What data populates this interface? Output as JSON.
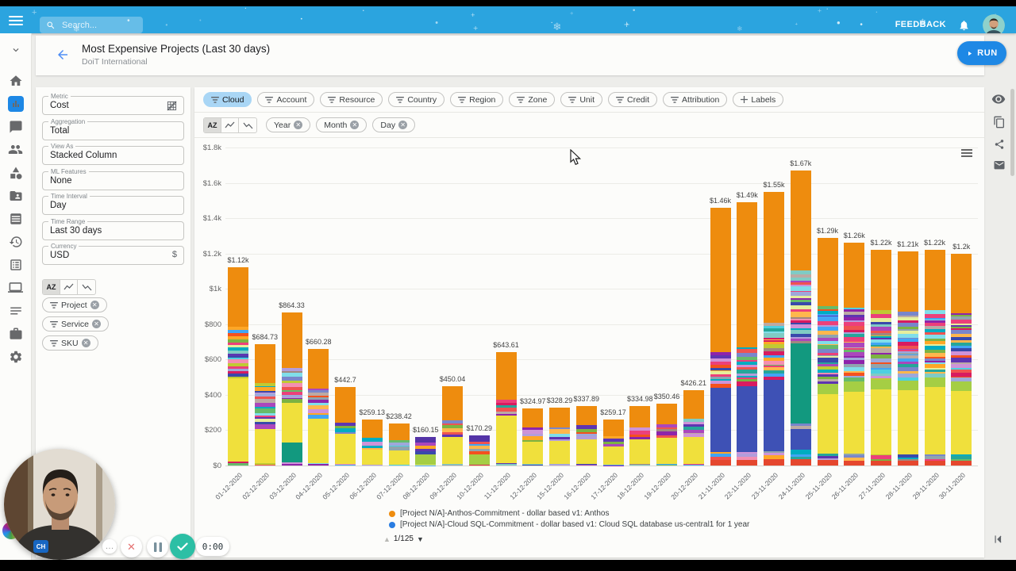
{
  "topbar": {
    "search_placeholder": "Search...",
    "feedback_label": "FEEDBACK"
  },
  "header": {
    "title": "Most Expensive Projects (Last 30 days)",
    "subtitle": "DoiT International",
    "run_label": "RUN"
  },
  "config": {
    "fields": [
      {
        "label": "Metric",
        "value": "Cost",
        "trailing": "table-off-icon"
      },
      {
        "label": "Aggregation",
        "value": "Total"
      },
      {
        "label": "View As",
        "value": "Stacked Column"
      },
      {
        "label": "ML Features",
        "value": "None"
      },
      {
        "label": "Time Interval",
        "value": "Day"
      },
      {
        "label": "Time Range",
        "value": "Last 30 days"
      },
      {
        "label": "Currency",
        "value": "USD",
        "trailing": "$"
      }
    ]
  },
  "filters": {
    "filter_chips": [
      "Cloud",
      "Account",
      "Resource",
      "Country",
      "Region",
      "Zone",
      "Unit",
      "Credit",
      "Attribution"
    ],
    "active_chip": "Cloud",
    "labels_chip": "Labels",
    "group_chips": [
      "Year",
      "Month",
      "Day"
    ],
    "left_chips": [
      "Project",
      "Service",
      "SKU"
    ]
  },
  "legend": {
    "pagination": "1/125"
  },
  "recorder": {
    "timer": "0:00"
  },
  "chart_data": {
    "type": "bar",
    "stacked": true,
    "currency": "USD",
    "ylim": [
      0,
      1800
    ],
    "grid": true,
    "legend_position": "bottom",
    "y_ticks": [
      {
        "v": 1800,
        "l": "$1.8k"
      },
      {
        "v": 1600,
        "l": "$1.6k"
      },
      {
        "v": 1400,
        "l": "$1.4k"
      },
      {
        "v": 1200,
        "l": "$1.2k"
      },
      {
        "v": 1000,
        "l": "$1k"
      },
      {
        "v": 800,
        "l": "$800"
      },
      {
        "v": 600,
        "l": "$600"
      },
      {
        "v": 400,
        "l": "$400"
      },
      {
        "v": 200,
        "l": "$200"
      },
      {
        "v": 0,
        "l": "$0"
      }
    ],
    "series": [
      {
        "name": "[Project N/A]-Anthos-Commitment - dollar based v1: Anthos",
        "color": "#EE8C0E"
      },
      {
        "name": "[Project N/A]-Cloud SQL-Commitment - dollar based v1: Cloud SQL database us-central1 for 1 year",
        "color": "#2A7DE1"
      }
    ],
    "bars": [
      {
        "d": "01-12-2020",
        "v": 1120,
        "l": "$1.12k",
        "p": "std",
        "t": 0.3,
        "b": 0.42
      },
      {
        "d": "02-12-2020",
        "v": 684.73,
        "l": "$684.73",
        "p": "std",
        "t": 0.32,
        "b": 0.28
      },
      {
        "d": "03-12-2020",
        "v": 864.33,
        "l": "$864.33",
        "p": "stdteal",
        "t": 0.36,
        "b": 0.26
      },
      {
        "d": "04-12-2020",
        "v": 660.28,
        "l": "$660.28",
        "p": "std",
        "t": 0.34,
        "b": 0.38
      },
      {
        "d": "05-12-2020",
        "v": 442.7,
        "l": "$442.7",
        "p": "std",
        "t": 0.45,
        "b": 0.38
      },
      {
        "d": "06-12-2020",
        "v": 259.13,
        "l": "$259.13",
        "p": "std",
        "t": 0.4,
        "b": 0.33
      },
      {
        "d": "07-12-2020",
        "v": 238.42,
        "l": "$238.42",
        "p": "std",
        "t": 0.4,
        "b": 0.34
      },
      {
        "d": "08-12-2020",
        "v": 160.15,
        "l": "$160.15",
        "p": "purple",
        "t": 0.2,
        "b": 0.38
      },
      {
        "d": "09-12-2020",
        "v": 450.04,
        "l": "$450.04",
        "p": "std",
        "t": 0.43,
        "b": 0.34
      },
      {
        "d": "10-12-2020",
        "v": 170.29,
        "l": "$170.29",
        "p": "purple",
        "t": 0.22,
        "b": 0.34
      },
      {
        "d": "11-12-2020",
        "v": 643.61,
        "l": "$643.61",
        "p": "std",
        "t": 0.42,
        "b": 0.42
      },
      {
        "d": "12-12-2020",
        "v": 324.97,
        "l": "$324.97",
        "p": "std",
        "t": 0.34,
        "b": 0.4
      },
      {
        "d": "15-12-2020",
        "v": 328.29,
        "l": "$328.29",
        "p": "std",
        "t": 0.35,
        "b": 0.4
      },
      {
        "d": "16-12-2020",
        "v": 337.89,
        "l": "$337.89",
        "p": "std",
        "t": 0.32,
        "b": 0.42
      },
      {
        "d": "17-12-2020",
        "v": 259.17,
        "l": "$259.17",
        "p": "std",
        "t": 0.36,
        "b": 0.4
      },
      {
        "d": "18-12-2020",
        "v": 334.98,
        "l": "$334.98",
        "p": "std",
        "t": 0.36,
        "b": 0.42
      },
      {
        "d": "19-12-2020",
        "v": 350.46,
        "l": "$350.46",
        "p": "std",
        "t": 0.34,
        "b": 0.43
      },
      {
        "d": "20-12-2020",
        "v": 426.21,
        "l": "$426.21",
        "p": "std",
        "t": 0.38,
        "b": 0.36
      },
      {
        "d": "21-11-2020",
        "v": 1460,
        "l": "$1.46k",
        "p": "tblue",
        "t": 0.56,
        "b": 0.25
      },
      {
        "d": "22-11-2020",
        "v": 1490,
        "l": "$1.49k",
        "p": "tblue",
        "t": 0.55,
        "b": 0.25
      },
      {
        "d": "23-11-2020",
        "v": 1550,
        "l": "$1.55k",
        "p": "tblue",
        "t": 0.48,
        "b": 0.26
      },
      {
        "d": "24-11-2020",
        "v": 1670,
        "l": "$1.67k",
        "p": "tteal",
        "t": 0.34,
        "b": 0.27
      },
      {
        "d": "25-11-2020",
        "v": 1290,
        "l": "$1.29k",
        "p": "nov",
        "t": 0.3,
        "b": 0.26
      },
      {
        "d": "26-11-2020",
        "v": 1260,
        "l": "$1.26k",
        "p": "nov",
        "t": 0.29,
        "b": 0.28
      },
      {
        "d": "27-11-2020",
        "v": 1220,
        "l": "$1.22k",
        "p": "nov",
        "t": 0.28,
        "b": 0.3
      },
      {
        "d": "28-11-2020",
        "v": 1210,
        "l": "$1.21k",
        "p": "nov",
        "t": 0.28,
        "b": 0.3
      },
      {
        "d": "29-11-2020",
        "v": 1220,
        "l": "$1.22k",
        "p": "nov",
        "t": 0.28,
        "b": 0.31
      },
      {
        "d": "30-11-2020",
        "v": 1200,
        "l": "$1.2k",
        "p": "nov",
        "t": 0.28,
        "b": 0.3
      }
    ],
    "colors": {
      "orange": "#EE8C0E",
      "yellow": "#F0E03C",
      "blue": "#3E51B5",
      "teal": "#12997F",
      "green": "#A5CE44",
      "purple": "#5434A7",
      "red": "#E5472E"
    },
    "palette": [
      "#8E24AA",
      "#3949AB",
      "#00ACC1",
      "#7CB342",
      "#D81B60",
      "#F4511E",
      "#5E35B1",
      "#26A69A",
      "#EC407A",
      "#A1887F",
      "#42A5F5",
      "#C0CA33",
      "#EF5350",
      "#AB47BC",
      "#66BB6A",
      "#FFB74D",
      "#4DD0E1",
      "#F48FB1",
      "#7986CB",
      "#90A4AE",
      "#FFA726",
      "#B39DDB",
      "#80CBC4",
      "#CE93D8",
      "#9FA8DA",
      "#80DEEA",
      "#E6EE9C",
      "#BCAAA4"
    ]
  }
}
